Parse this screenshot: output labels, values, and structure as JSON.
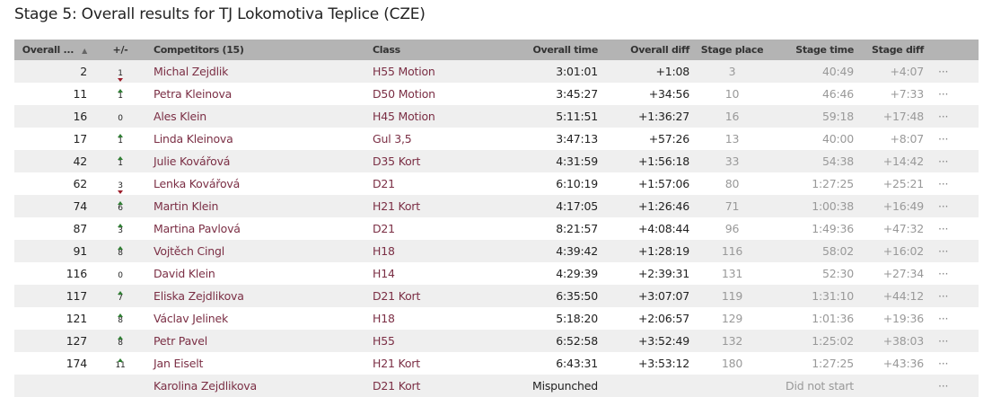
{
  "page_title": "Stage 5: Overall results for TJ Lokomotiva Teplice (CZE)",
  "colors": {
    "header_bg": "#b4b4b4",
    "row_alt_bg": "#efefef",
    "link": "#7b2f45",
    "up": "#2e7d32",
    "down": "#9c1d2a"
  },
  "table": {
    "headers": {
      "overall": "Overall ...",
      "change": "+/-",
      "competitors": "Competitors (15)",
      "class": "Class",
      "overall_time": "Overall time",
      "overall_diff": "Overall diff",
      "stage_place": "Stage place",
      "stage_time": "Stage time",
      "stage_diff": "Stage diff"
    },
    "sort_icon": "sort-up-icon",
    "more_label": "···",
    "rows": [
      {
        "overall": "2",
        "change": "1",
        "dir": "down",
        "competitor": "Michal Zejdlik",
        "class": "H55 Motion",
        "overall_time": "3:01:01",
        "overall_diff": "+1:08",
        "stage_place": "3",
        "stage_time": "40:49",
        "stage_diff": "+4:07"
      },
      {
        "overall": "11",
        "change": "1",
        "dir": "up",
        "competitor": "Petra Kleinova",
        "class": "D50 Motion",
        "overall_time": "3:45:27",
        "overall_diff": "+34:56",
        "stage_place": "10",
        "stage_time": "46:46",
        "stage_diff": "+7:33"
      },
      {
        "overall": "16",
        "change": "0",
        "dir": "none",
        "competitor": "Ales Klein",
        "class": "H45 Motion",
        "overall_time": "5:11:51",
        "overall_diff": "+1:36:27",
        "stage_place": "16",
        "stage_time": "59:18",
        "stage_diff": "+17:48"
      },
      {
        "overall": "17",
        "change": "1",
        "dir": "up",
        "competitor": "Linda Kleinova",
        "class": "Gul 3,5",
        "overall_time": "3:47:13",
        "overall_diff": "+57:26",
        "stage_place": "13",
        "stage_time": "40:00",
        "stage_diff": "+8:07"
      },
      {
        "overall": "42",
        "change": "1",
        "dir": "up",
        "competitor": "Julie Kovářová",
        "class": "D35 Kort",
        "overall_time": "4:31:59",
        "overall_diff": "+1:56:18",
        "stage_place": "33",
        "stage_time": "54:38",
        "stage_diff": "+14:42"
      },
      {
        "overall": "62",
        "change": "3",
        "dir": "down",
        "competitor": "Lenka Kovářová",
        "class": "D21",
        "overall_time": "6:10:19",
        "overall_diff": "+1:57:06",
        "stage_place": "80",
        "stage_time": "1:27:25",
        "stage_diff": "+25:21"
      },
      {
        "overall": "74",
        "change": "6",
        "dir": "up",
        "competitor": "Martin Klein",
        "class": "H21 Kort",
        "overall_time": "4:17:05",
        "overall_diff": "+1:26:46",
        "stage_place": "71",
        "stage_time": "1:00:38",
        "stage_diff": "+16:49"
      },
      {
        "overall": "87",
        "change": "3",
        "dir": "up",
        "competitor": "Martina Pavlová",
        "class": "D21",
        "overall_time": "8:21:57",
        "overall_diff": "+4:08:44",
        "stage_place": "96",
        "stage_time": "1:49:36",
        "stage_diff": "+47:32"
      },
      {
        "overall": "91",
        "change": "8",
        "dir": "up",
        "competitor": "Vojtěch Cingl",
        "class": "H18",
        "overall_time": "4:39:42",
        "overall_diff": "+1:28:19",
        "stage_place": "116",
        "stage_time": "58:02",
        "stage_diff": "+16:02"
      },
      {
        "overall": "116",
        "change": "0",
        "dir": "none",
        "competitor": "David Klein",
        "class": "H14",
        "overall_time": "4:29:39",
        "overall_diff": "+2:39:31",
        "stage_place": "131",
        "stage_time": "52:30",
        "stage_diff": "+27:34"
      },
      {
        "overall": "117",
        "change": "7",
        "dir": "up",
        "competitor": "Eliska Zejdlikova",
        "class": "D21 Kort",
        "overall_time": "6:35:50",
        "overall_diff": "+3:07:07",
        "stage_place": "119",
        "stage_time": "1:31:10",
        "stage_diff": "+44:12"
      },
      {
        "overall": "121",
        "change": "8",
        "dir": "up",
        "competitor": "Václav Jelinek",
        "class": "H18",
        "overall_time": "5:18:20",
        "overall_diff": "+2:06:57",
        "stage_place": "129",
        "stage_time": "1:01:36",
        "stage_diff": "+19:36"
      },
      {
        "overall": "127",
        "change": "8",
        "dir": "up",
        "competitor": "Petr Pavel",
        "class": "H55",
        "overall_time": "6:52:58",
        "overall_diff": "+3:52:49",
        "stage_place": "132",
        "stage_time": "1:25:02",
        "stage_diff": "+38:03"
      },
      {
        "overall": "174",
        "change": "11",
        "dir": "up",
        "competitor": "Jan Eiselt",
        "class": "H21 Kort",
        "overall_time": "6:43:31",
        "overall_diff": "+3:53:12",
        "stage_place": "180",
        "stage_time": "1:27:25",
        "stage_diff": "+43:36"
      },
      {
        "overall": "",
        "change": "",
        "dir": "none",
        "competitor": "Karolina Zejdlikova",
        "class": "D21 Kort",
        "overall_time": "Mispunched",
        "overall_diff": "",
        "stage_place": "",
        "stage_time": "Did not start",
        "stage_diff": ""
      }
    ]
  }
}
